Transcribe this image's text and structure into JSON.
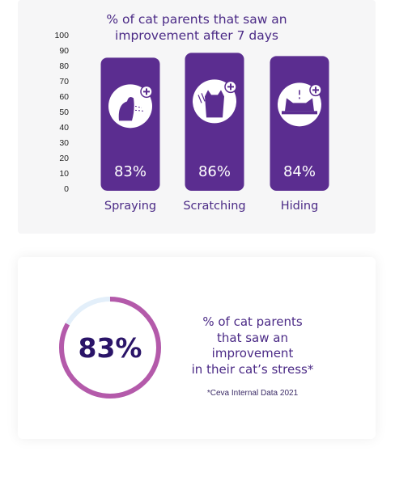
{
  "chart_data": {
    "type": "bar",
    "title_lines": [
      "% of cat parents that saw an",
      "improvement after 7 days"
    ],
    "categories": [
      "Spraying",
      "Scratching",
      "Hiding"
    ],
    "values": [
      83,
      86,
      84
    ],
    "value_labels": [
      "83%",
      "86%",
      "84%"
    ],
    "icons": [
      "spraying-cat-icon",
      "scratching-cat-icon",
      "hiding-cat-icon"
    ],
    "yticks": [
      "100",
      "90",
      "80",
      "70",
      "60",
      "50",
      "40",
      "30",
      "20",
      "10",
      "0"
    ],
    "ylim": [
      0,
      100
    ],
    "bar_color": "#5b2d90",
    "label_color": "#4b2a86"
  },
  "stat": {
    "value": 83,
    "value_label": "83%",
    "text_lines": [
      "% of cat parents",
      "that saw an",
      "improvement",
      "in their cat’s stress*"
    ],
    "footnote": "*Ceva Internal Data 2021",
    "ring_color": "#b45aaa",
    "track_color": "#e3effa"
  }
}
